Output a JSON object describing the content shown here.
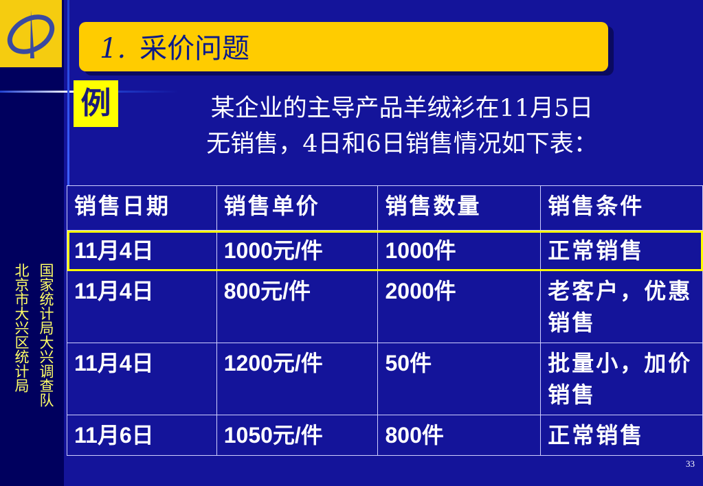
{
  "slide": {
    "title_num": "1.",
    "title": "采价问题",
    "example_badge": "例",
    "intro_line1": "某企业的主导产品羊绒衫在11月5日",
    "intro_line2": "无销售，4日和6日销售情况如下表：",
    "sidebar_line1": "国家统计局大兴调查队",
    "sidebar_line2": "北京市大兴区统计局",
    "page_number": "33"
  },
  "colors": {
    "background": "#14149a",
    "sidebar": "#00005e",
    "title_box": "#ffcc00",
    "highlight": "#ffff00"
  },
  "table": {
    "headers": [
      "销售日期",
      "销售单价",
      "销售数量",
      "销售条件"
    ],
    "rows": [
      [
        "11月4日",
        "1000元/件",
        "1000件",
        "正常销售"
      ],
      [
        "11月4日",
        "800元/件",
        "2000件",
        "老客户，优惠销售"
      ],
      [
        "11月4日",
        "1200元/件",
        "50件",
        "批量小，加价销售"
      ],
      [
        "11月6日",
        "1050元/件",
        "800件",
        "正常销售"
      ]
    ],
    "highlighted_row": 0
  }
}
